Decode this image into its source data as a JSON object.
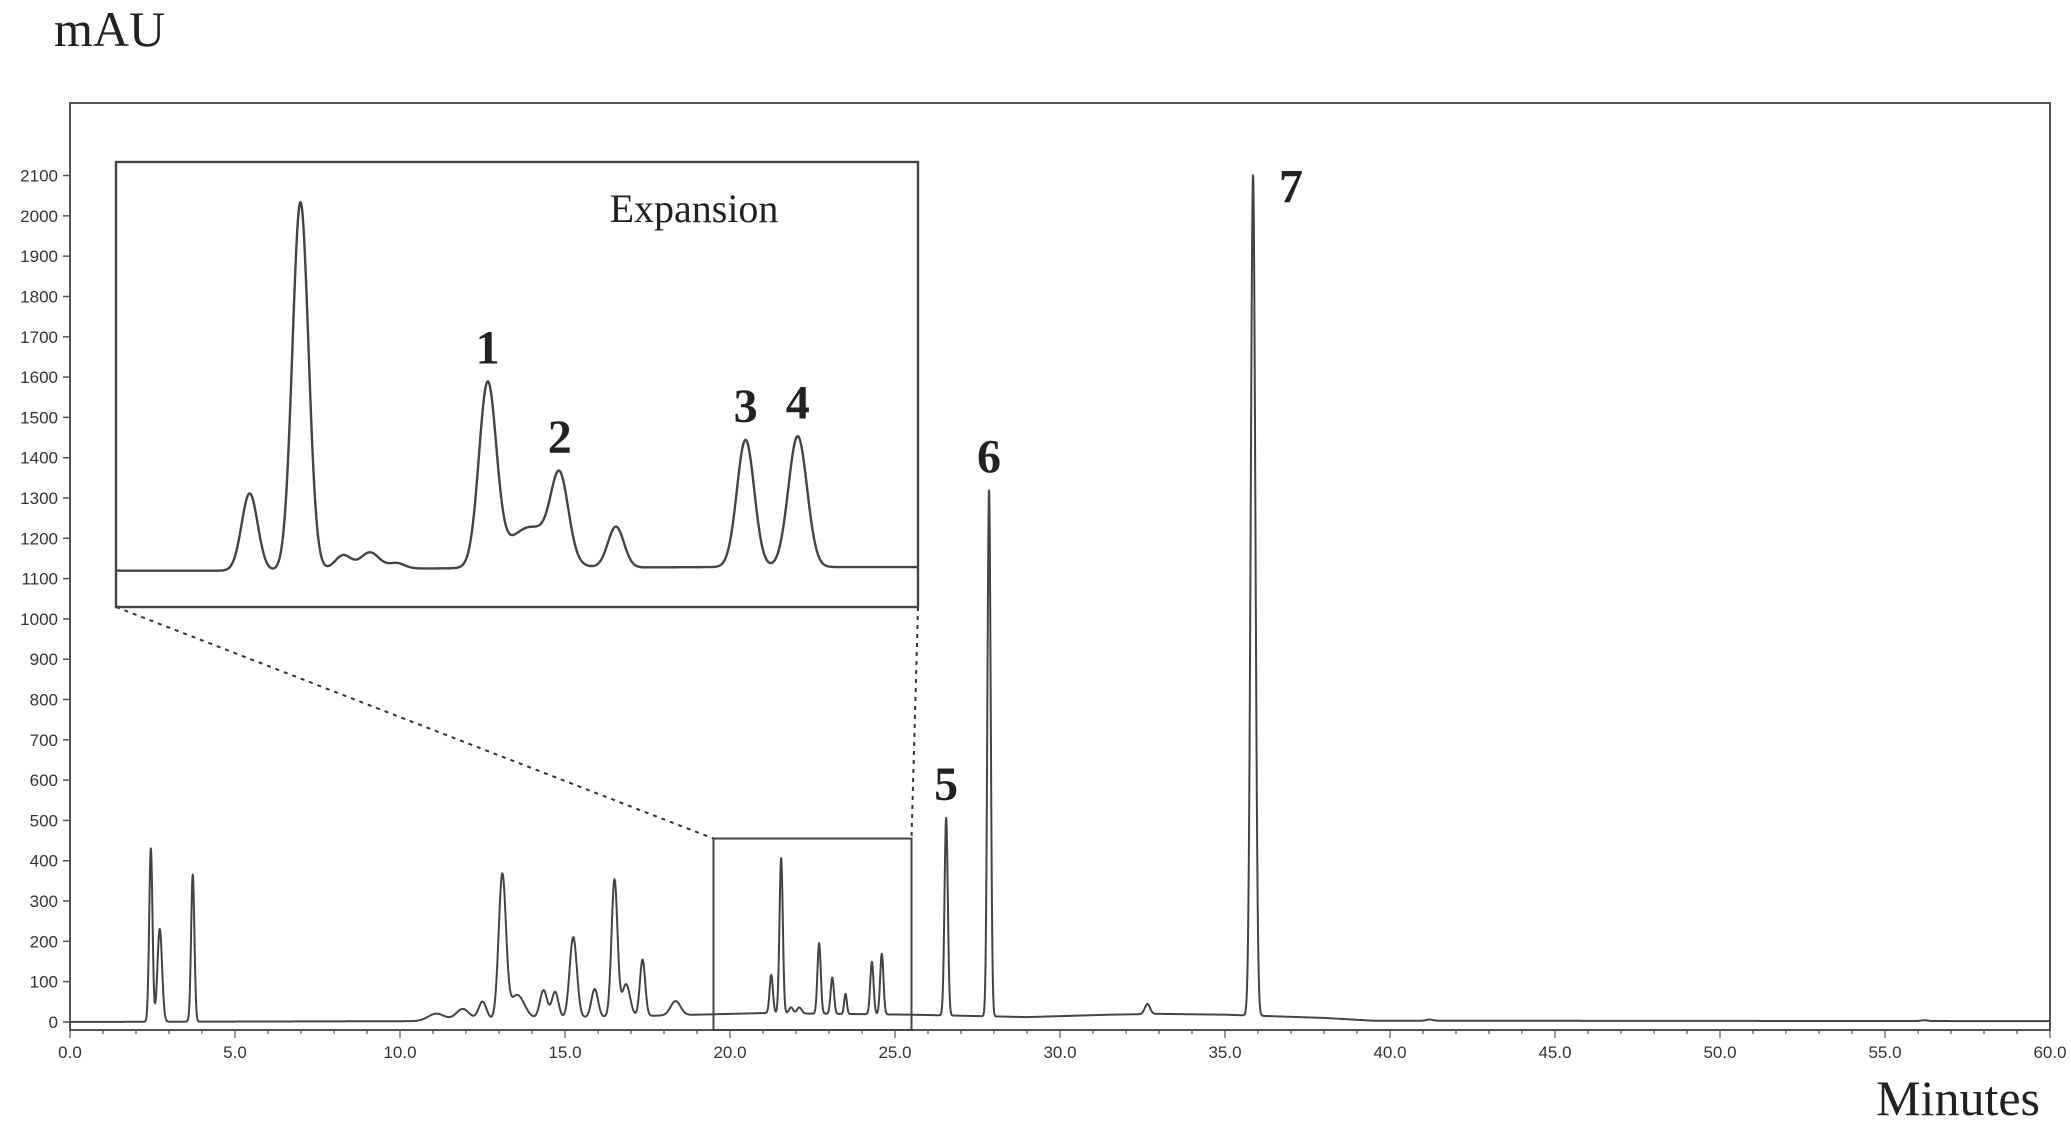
{
  "chart_data": {
    "type": "line",
    "title": "",
    "ylabel": "mAU",
    "xlabel": "Minutes",
    "xlim": [
      0,
      60
    ],
    "ylim": [
      -20,
      2280
    ],
    "xticks": [
      0,
      5,
      10,
      15,
      20,
      25,
      30,
      35,
      40,
      45,
      50,
      55,
      60
    ],
    "xtick_labels": [
      "0.0",
      "5.0",
      "10.0",
      "15.0",
      "20.0",
      "25.0",
      "30.0",
      "35.0",
      "40.0",
      "45.0",
      "50.0",
      "55.0",
      "60.0"
    ],
    "yticks": [
      0,
      100,
      200,
      300,
      400,
      500,
      600,
      700,
      800,
      900,
      1000,
      1100,
      1200,
      1300,
      1400,
      1500,
      1600,
      1700,
      1800,
      1900,
      2000,
      2100
    ],
    "ytick_labels": [
      "0",
      "100",
      "200",
      "300",
      "400",
      "500",
      "600",
      "700",
      "800",
      "900",
      "1000",
      "1100",
      "1200",
      "1300",
      "1400",
      "1500",
      "1600",
      "1700",
      "1800",
      "1900",
      "2000",
      "2100"
    ],
    "grid": false,
    "baseline": [
      [
        0,
        0
      ],
      [
        10.8,
        2
      ],
      [
        14,
        8
      ],
      [
        19,
        18
      ],
      [
        21,
        22
      ],
      [
        25.5,
        18
      ],
      [
        29,
        12
      ],
      [
        31.5,
        18
      ],
      [
        33,
        20
      ],
      [
        35,
        18
      ],
      [
        36.5,
        14
      ],
      [
        38,
        10
      ],
      [
        39.5,
        3
      ],
      [
        42,
        3
      ],
      [
        60,
        2
      ]
    ],
    "peaks": [
      {
        "t": 2.45,
        "h": 430,
        "w": 0.05
      },
      {
        "t": 2.72,
        "h": 230,
        "w": 0.07
      },
      {
        "t": 3.72,
        "h": 365,
        "w": 0.05
      },
      {
        "t": 11.1,
        "h": 18,
        "w": 0.25
      },
      {
        "t": 11.9,
        "h": 28,
        "w": 0.2
      },
      {
        "t": 12.5,
        "h": 45,
        "w": 0.12
      },
      {
        "t": 13.1,
        "h": 355,
        "w": 0.11
      },
      {
        "t": 13.55,
        "h": 60,
        "w": 0.22
      },
      {
        "t": 14.35,
        "h": 70,
        "w": 0.11
      },
      {
        "t": 14.7,
        "h": 65,
        "w": 0.1
      },
      {
        "t": 15.25,
        "h": 200,
        "w": 0.11
      },
      {
        "t": 15.9,
        "h": 70,
        "w": 0.1
      },
      {
        "t": 16.5,
        "h": 340,
        "w": 0.09
      },
      {
        "t": 16.85,
        "h": 80,
        "w": 0.12
      },
      {
        "t": 17.35,
        "h": 140,
        "w": 0.08
      },
      {
        "t": 18.35,
        "h": 35,
        "w": 0.15
      },
      {
        "t": 21.25,
        "h": 95,
        "w": 0.05
      },
      {
        "t": 21.55,
        "h": 385,
        "w": 0.05
      },
      {
        "t": 21.85,
        "h": 15,
        "w": 0.06
      },
      {
        "t": 22.1,
        "h": 15,
        "w": 0.07
      },
      {
        "t": 22.7,
        "h": 175,
        "w": 0.05
      },
      {
        "t": 23.1,
        "h": 90,
        "w": 0.05
      },
      {
        "t": 23.5,
        "h": 50,
        "w": 0.04
      },
      {
        "t": 24.3,
        "h": 130,
        "w": 0.05
      },
      {
        "t": 24.6,
        "h": 150,
        "w": 0.05
      },
      {
        "t": 26.55,
        "h": 490,
        "w": 0.05
      },
      {
        "t": 27.85,
        "h": 1305,
        "w": 0.05
      },
      {
        "t": 32.65,
        "h": 25,
        "w": 0.08
      },
      {
        "t": 35.85,
        "h": 2085,
        "w": 0.07
      },
      {
        "t": 41.2,
        "h": 3,
        "w": 0.1
      },
      {
        "t": 56.2,
        "h": 2,
        "w": 0.1
      }
    ],
    "zoom_region": {
      "x": [
        19.5,
        25.5
      ],
      "y": [
        -20,
        455
      ]
    },
    "inset": {
      "title": "Expansion",
      "x": [
        19.5,
        25.5
      ],
      "y": [
        -20,
        470
      ],
      "baseline": [
        [
          19.5,
          20
        ],
        [
          20.7,
          20
        ],
        [
          21.2,
          22
        ],
        [
          24.0,
          24
        ],
        [
          25.5,
          24
        ]
      ],
      "peaks": [
        {
          "t": 20.5,
          "h": 85,
          "w": 0.06
        },
        {
          "t": 20.88,
          "h": 405,
          "w": 0.06
        },
        {
          "t": 21.2,
          "h": 15,
          "w": 0.06
        },
        {
          "t": 21.4,
          "h": 18,
          "w": 0.07
        },
        {
          "t": 21.6,
          "h": 6,
          "w": 0.06
        },
        {
          "t": 22.28,
          "h": 198,
          "w": 0.065
        },
        {
          "t": 22.6,
          "h": 45,
          "w": 0.17
        },
        {
          "t": 22.82,
          "h": 87,
          "w": 0.065
        },
        {
          "t": 23.24,
          "h": 45,
          "w": 0.06
        },
        {
          "t": 24.21,
          "h": 140,
          "w": 0.065
        },
        {
          "t": 24.6,
          "h": 144,
          "w": 0.07
        }
      ]
    },
    "annotations": [
      {
        "label": "1",
        "t": 22.28,
        "panel": "inset"
      },
      {
        "label": "2",
        "t": 22.82,
        "panel": "inset"
      },
      {
        "label": "3",
        "t": 24.21,
        "panel": "inset"
      },
      {
        "label": "4",
        "t": 24.6,
        "panel": "inset"
      },
      {
        "label": "5",
        "t": 26.55,
        "panel": "main"
      },
      {
        "label": "6",
        "t": 27.85,
        "panel": "main"
      },
      {
        "label": "7",
        "t": 35.85,
        "panel": "main"
      }
    ]
  }
}
